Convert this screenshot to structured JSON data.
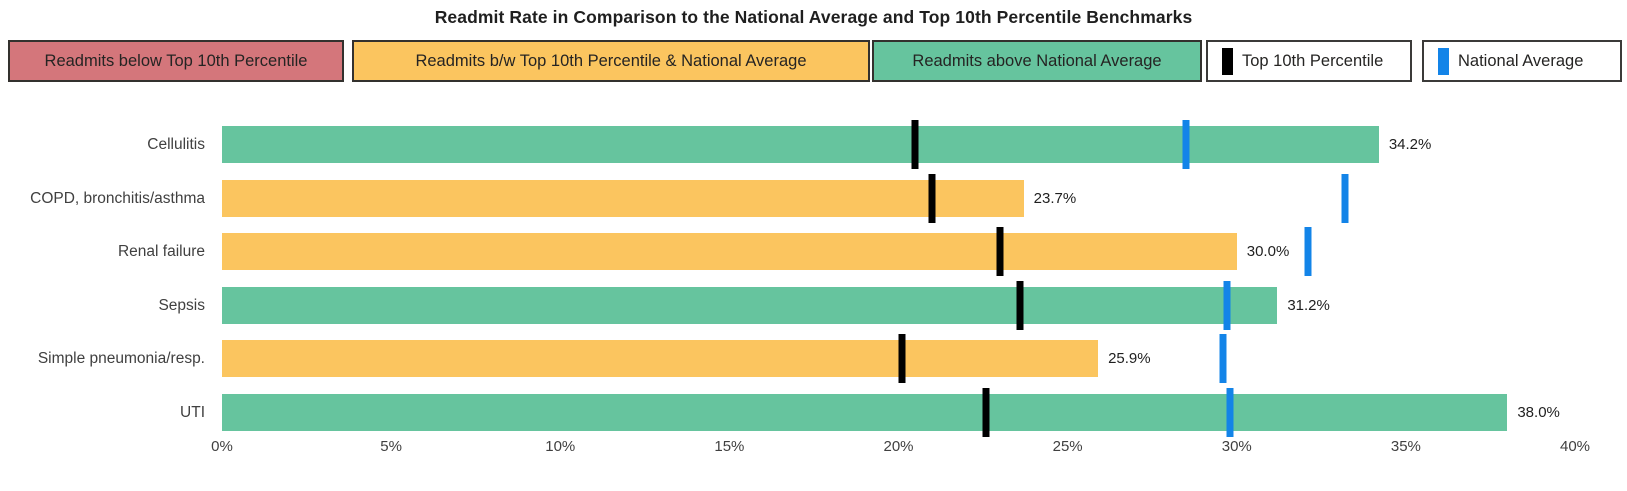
{
  "title": "Readmit Rate in Comparison to the National Average and Top 10th Percentile Benchmarks",
  "colors": {
    "above_national_average": "#66C49E",
    "between_benchmarks": "#FBC55F",
    "below_top_10th": "#D4767B",
    "national_average_marker": "#1384E8",
    "top_10th_marker": "#000000"
  },
  "legend": {
    "items": [
      {
        "label": "Readmits below Top 10th Percentile",
        "type": "box",
        "color": "#D4767B"
      },
      {
        "label": "Readmits b/w Top 10th Percentile & National Average",
        "type": "box",
        "color": "#FBC55F"
      },
      {
        "label": "Readmits above National Average",
        "type": "box",
        "color": "#66C49E"
      },
      {
        "label": "Top 10th Percentile",
        "type": "marker",
        "color": "#000000"
      },
      {
        "label": "National Average",
        "type": "marker",
        "color": "#1384E8"
      }
    ]
  },
  "chart_data": {
    "type": "bar",
    "orientation": "horizontal",
    "title": "Readmit Rate in Comparison to the National Average and Top 10th Percentile Benchmarks",
    "categories": [
      "Cellulitis",
      "COPD, bronchitis/asthma",
      "Renal failure",
      "Sepsis",
      "Simple pneumonia/resp.",
      "UTI"
    ],
    "series": [
      {
        "name": "Readmit Rate",
        "values": [
          34.2,
          23.7,
          30.0,
          31.2,
          25.9,
          38.0
        ],
        "data_labels": [
          "34.2%",
          "23.7%",
          "30.0%",
          "31.2%",
          "25.9%",
          "38.0%"
        ],
        "bar_colors": [
          "#66C49E",
          "#FBC55F",
          "#FBC55F",
          "#66C49E",
          "#FBC55F",
          "#66C49E"
        ]
      },
      {
        "name": "Top 10th Percentile",
        "marker": "black-tick",
        "marker_color": "#000000",
        "values": [
          20.5,
          21.0,
          23.0,
          23.6,
          20.1,
          22.6
        ]
      },
      {
        "name": "National Average",
        "marker": "blue-tick",
        "marker_color": "#1384E8",
        "values": [
          28.5,
          33.2,
          32.1,
          29.7,
          29.6,
          29.8
        ]
      }
    ],
    "x_axis": {
      "tick_labels": [
        "0%",
        "5%",
        "10%",
        "15%",
        "20%",
        "25%",
        "30%",
        "35%",
        "40%"
      ],
      "min": 0,
      "max": 40,
      "grid": false
    },
    "y_axis_label": "",
    "legend_position": "top"
  }
}
